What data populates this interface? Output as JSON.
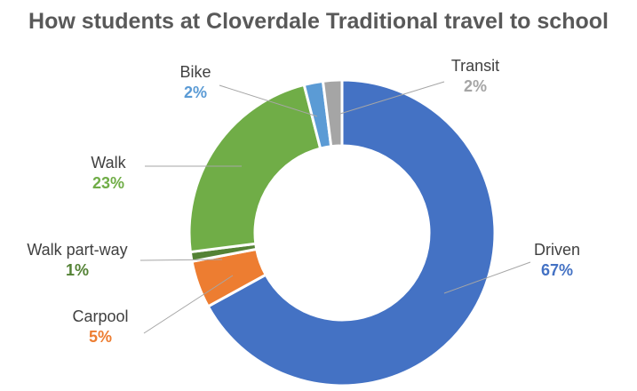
{
  "chart_data": {
    "type": "pie",
    "title": "How students at Cloverdale Traditional travel to school",
    "categories": [
      "Driven",
      "Carpool",
      "Walk part-way",
      "Walk",
      "Bike",
      "Transit"
    ],
    "values": [
      67,
      5,
      1,
      23,
      2,
      2
    ],
    "value_labels": [
      "67%",
      "5%",
      "1%",
      "23%",
      "2%",
      "2%"
    ],
    "colors": [
      "#4472C4",
      "#ED7D31",
      "#548235",
      "#70AD47",
      "#5B9BD5",
      "#A5A5A5"
    ],
    "legend": "none",
    "grid": false
  }
}
